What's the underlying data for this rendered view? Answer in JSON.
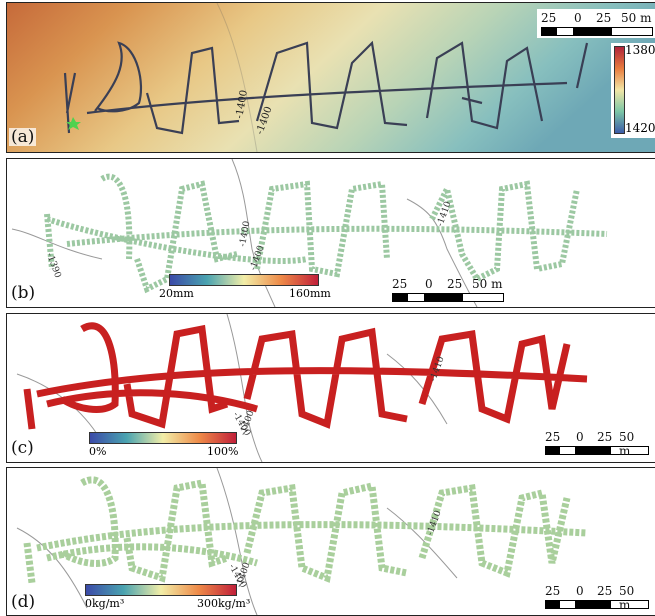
{
  "panels": [
    {
      "label": "(a)",
      "type": "bathymetry"
    },
    {
      "label": "(b)",
      "type": "points"
    },
    {
      "label": "(c)",
      "type": "points"
    },
    {
      "label": "(d)",
      "type": "points"
    }
  ],
  "scale_bar": {
    "ticks": [
      "25",
      "0",
      "25",
      "50 m"
    ]
  },
  "depth_colorbar": {
    "top": "1380m",
    "bottom": "1420m"
  },
  "contours": {
    "a": [
      "-1400",
      "-1400"
    ],
    "b": [
      "-1390",
      "-1400",
      "-1400",
      "-1410"
    ],
    "c": [
      "-1400",
      "-1400",
      "-1410"
    ],
    "d": [
      "-1400",
      "-1400",
      "-1410"
    ]
  },
  "colorbar_b": {
    "min": "20mm",
    "max": "160mm"
  },
  "colorbar_c": {
    "min": "0%",
    "max": "100%"
  },
  "colorbar_d": {
    "min": "0kg/m³",
    "max": "300kg/m³"
  },
  "colors": {
    "dominant_c": "#c82020",
    "star": "#4fd24f"
  }
}
